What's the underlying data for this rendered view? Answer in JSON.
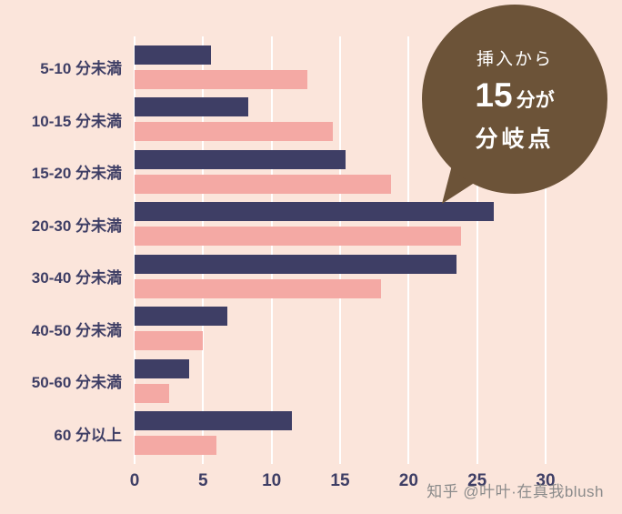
{
  "chart_data": {
    "type": "bar",
    "orientation": "horizontal",
    "title": "",
    "xlabel": "",
    "ylabel": "",
    "xlim": [
      0,
      30
    ],
    "x_ticks": [
      0,
      5,
      10,
      15,
      20,
      25,
      30
    ],
    "grid": true,
    "legend": "none",
    "categories": [
      "5-10 分未満",
      "10-15 分未満",
      "15-20 分未満",
      "20-30 分未満",
      "30-40 分未満",
      "40-50 分未満",
      "50-60 分未満",
      "60 分以上"
    ],
    "series": [
      {
        "name": "navy-series",
        "color": "#3E3E65",
        "values": [
          5.6,
          8.3,
          15.4,
          26.2,
          23.5,
          6.8,
          4.0,
          11.5
        ]
      },
      {
        "name": "pink-series",
        "color": "#F4A9A4",
        "values": [
          12.6,
          14.5,
          18.7,
          23.8,
          18.0,
          5.0,
          2.5,
          6.0
        ]
      }
    ]
  },
  "annotation": {
    "line1": "挿入から",
    "line2_number": "15",
    "line2_suffix": "分が",
    "line3": "分岐点",
    "bubble_color": "#6C5338",
    "text_color": "#FFFFFF"
  },
  "watermark": {
    "text": "知乎 @叶叶·在真我blush"
  },
  "colors": {
    "background": "#FBE5DB",
    "grid": "#FFFFFF",
    "label_text": "#3E3E65"
  }
}
